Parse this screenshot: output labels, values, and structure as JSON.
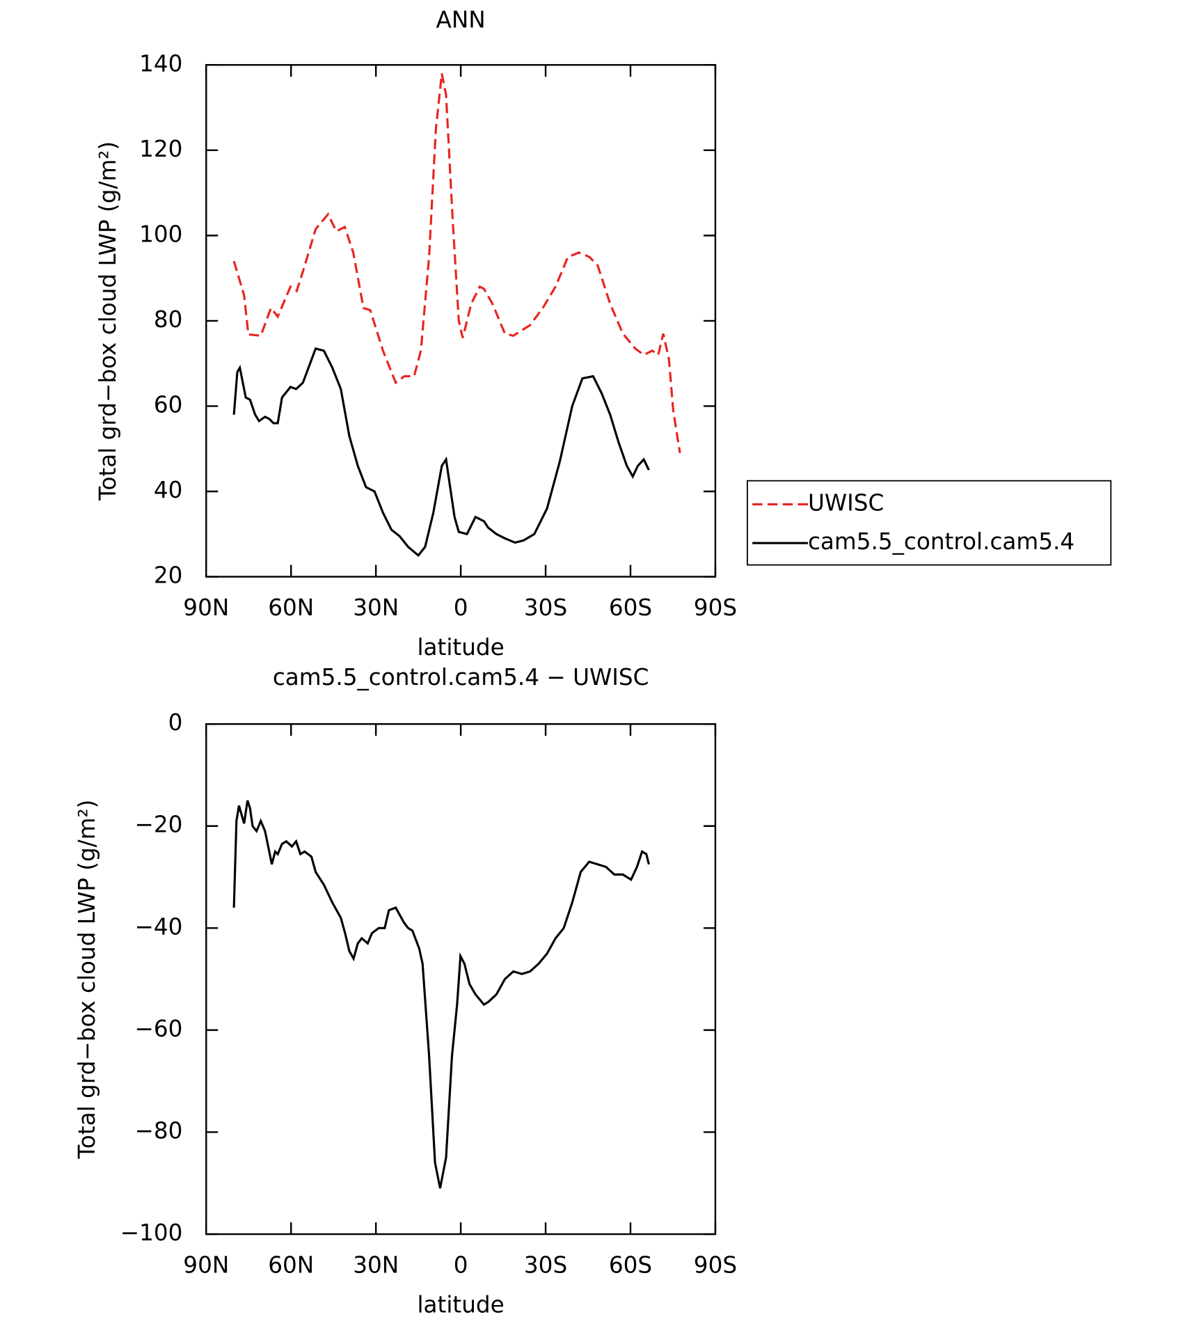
{
  "chart_data": [
    {
      "type": "line",
      "title": "ANN",
      "xlabel": "latitude",
      "ylabel": "Total grd−box cloud LWP (g/m²)",
      "xlim": [
        90,
        -90
      ],
      "xticks": [
        {
          "value": 90,
          "label": "90N"
        },
        {
          "value": 60,
          "label": "60N"
        },
        {
          "value": 30,
          "label": "30N"
        },
        0,
        {
          "value": -30,
          "label": "30S"
        },
        {
          "value": -60,
          "label": "60S"
        },
        {
          "value": -90,
          "label": "90S"
        }
      ],
      "ylim": [
        20,
        140
      ],
      "yticks": [
        20,
        40,
        60,
        80,
        100,
        120,
        140
      ],
      "legend": "right",
      "series": [
        {
          "name": "UWISC",
          "color": "#e8241f",
          "dash": true,
          "x": [
            80.2,
            76.6,
            75.1,
            70.7,
            67.1,
            64.7,
            60.2,
            58,
            55.6,
            51.3,
            46.9,
            44,
            41,
            38,
            34.4,
            32,
            27.5,
            23,
            20,
            16.5,
            14.1,
            11.2,
            8.8,
            6.7,
            5.2,
            2.8,
            0.7,
            -0.7,
            -3.7,
            -6.7,
            -8.2,
            -11.2,
            -15.6,
            -18.6,
            -24.5,
            -29,
            -33.5,
            -37.9,
            -41.8,
            -45.4,
            -48.4,
            -52.8,
            -57.3,
            -61.7,
            -64.7,
            -67.7,
            -69.8,
            -71.6,
            -73.6,
            -75.1,
            -77.5
          ],
          "values": [
            94,
            86,
            76.8,
            76.5,
            83,
            81,
            88,
            87,
            92,
            101.5,
            105,
            101,
            102,
            96,
            83,
            82.5,
            73,
            65.5,
            67,
            67,
            73,
            95,
            125,
            138,
            133,
            103,
            80,
            76,
            84,
            88,
            87.5,
            84,
            77,
            76.5,
            79,
            83,
            88,
            95,
            96,
            95,
            93,
            84,
            77,
            73.5,
            72,
            73,
            72,
            77,
            71,
            59,
            49
          ]
        },
        {
          "name": "cam5.5_control.cam5.4",
          "color": "#000000",
          "dash": false,
          "x": [
            80.2,
            79,
            78.1,
            76,
            74.5,
            72.7,
            71.3,
            69.2,
            67.7,
            66.2,
            64.7,
            63.2,
            60.2,
            58.2,
            55.8,
            51.3,
            48.4,
            45.4,
            42.4,
            39.4,
            36.4,
            33.5,
            30.5,
            27.5,
            24.5,
            21.6,
            18.6,
            15,
            12.6,
            9.7,
            6.7,
            5.2,
            2.2,
            0.7,
            -2.2,
            -5.2,
            -8.2,
            -9.7,
            -12.6,
            -15.6,
            -19.2,
            -22.2,
            -26,
            -30.5,
            -35,
            -39.4,
            -43,
            -46.8,
            -49.8,
            -52.8,
            -55.8,
            -58.7,
            -60.8,
            -62.6,
            -64.7,
            -66.5
          ],
          "values": [
            58,
            68,
            69,
            62,
            61.5,
            58,
            56.5,
            57.5,
            57,
            56,
            56,
            62,
            64.5,
            64,
            65.5,
            73.5,
            73,
            69,
            64,
            53,
            46,
            41,
            40,
            35,
            31,
            29.5,
            27,
            25,
            27,
            35,
            46,
            47.5,
            34,
            30.5,
            30,
            34,
            33,
            31.5,
            30,
            29,
            28,
            28.5,
            30,
            36,
            47,
            60,
            66.5,
            67,
            63,
            58,
            51.5,
            46,
            43.5,
            46,
            47.5,
            45
          ]
        }
      ]
    },
    {
      "type": "line",
      "title": "cam5.5_control.cam5.4 − UWISC",
      "xlabel": "latitude",
      "ylabel": "Total grd−box cloud LWP (g/m²)",
      "xlim": [
        90,
        -90
      ],
      "xticks": [
        {
          "value": 90,
          "label": "90N"
        },
        {
          "value": 60,
          "label": "60N"
        },
        {
          "value": 30,
          "label": "30N"
        },
        0,
        {
          "value": -30,
          "label": "30S"
        },
        {
          "value": -60,
          "label": "60S"
        },
        {
          "value": -90,
          "label": "90S"
        }
      ],
      "ylim": [
        -100,
        0
      ],
      "yticks": [
        {
          "value": -100,
          "label": "−100"
        },
        {
          "value": -80,
          "label": "−80"
        },
        {
          "value": -60,
          "label": "−60"
        },
        {
          "value": -40,
          "label": "−40"
        },
        {
          "value": -20,
          "label": "−20"
        },
        0
      ],
      "series": [
        {
          "color": "#000000",
          "dash": false,
          "x": [
            80.2,
            79.3,
            78.4,
            76.6,
            75.4,
            74.5,
            73.6,
            72.2,
            70.7,
            69.2,
            67.7,
            66.8,
            65.6,
            64.7,
            63.2,
            61.7,
            59.7,
            58.2,
            56.7,
            55.2,
            52.8,
            51.3,
            48.4,
            45.4,
            42.4,
            40.9,
            39.4,
            37.9,
            36.4,
            35,
            32.9,
            31.4,
            29,
            26.9,
            25.4,
            23,
            20,
            18.6,
            17.1,
            14.7,
            13.5,
            11.2,
            9.1,
            7.3,
            5.2,
            3.1,
            1.3,
            0.1,
            -1.3,
            -3.1,
            -5.2,
            -8.2,
            -9.7,
            -12.6,
            -15.6,
            -18.6,
            -21.6,
            -24.5,
            -27.5,
            -30.5,
            -33.5,
            -36.4,
            -39.4,
            -42.4,
            -45.4,
            -48.4,
            -51.3,
            -54.3,
            -57.3,
            -60.2,
            -62.3,
            -64.1,
            -65.6,
            -66.5
          ],
          "values": [
            -36,
            -19,
            -16,
            -19.5,
            -15,
            -16.5,
            -20,
            -21,
            -19,
            -21,
            -25,
            -27.5,
            -25,
            -25.5,
            -23.5,
            -23,
            -24,
            -23,
            -25.5,
            -25,
            -26,
            -29,
            -31.5,
            -35,
            -38,
            -41,
            -44.5,
            -46,
            -43,
            -42,
            -43,
            -41,
            -40,
            -40,
            -36.5,
            -36,
            -39,
            -40,
            -40.5,
            -44,
            -47,
            -65,
            -86,
            -91,
            -85,
            -65,
            -55,
            -45.5,
            -47,
            -51,
            -53,
            -55,
            -54.5,
            -53,
            -50,
            -48.5,
            -49,
            -48.5,
            -47,
            -45,
            -42,
            -40,
            -35,
            -29,
            -27,
            -27.5,
            -28,
            -29.5,
            -29.5,
            -30.5,
            -28,
            -25,
            -25.5,
            -27.5
          ]
        }
      ]
    }
  ]
}
